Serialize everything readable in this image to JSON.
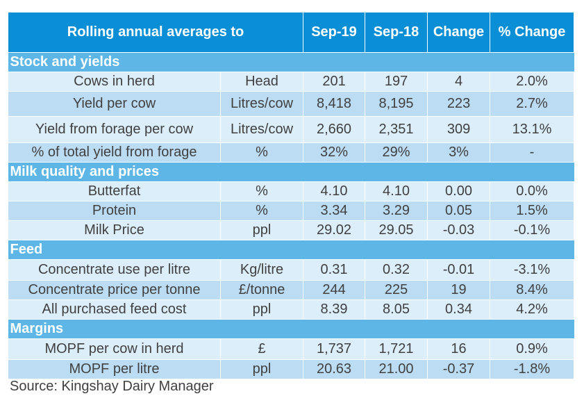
{
  "header": {
    "title": "Rolling annual averages to",
    "col_current": "Sep-19",
    "col_previous": "Sep-18",
    "col_change": "Change",
    "col_pct_change": "% Change"
  },
  "sections": [
    {
      "title": "Stock and yields",
      "rows": [
        {
          "label": "Cows in herd",
          "unit": "Head",
          "current": "201",
          "previous": "197",
          "change": "4",
          "pct": "2.0%"
        },
        {
          "label": "Yield per cow",
          "unit": "Litres/cow",
          "current": "8,418",
          "previous": "8,195",
          "change": "223",
          "pct": "2.7%"
        },
        {
          "label": "Yield from forage per cow",
          "unit": "Litres/cow",
          "current": "2,660",
          "previous": "2,351",
          "change": "309",
          "pct": "13.1%"
        },
        {
          "label": "% of total yield from forage",
          "unit": "%",
          "current": "32%",
          "previous": "29%",
          "change": "3%",
          "pct": "-"
        }
      ]
    },
    {
      "title": "Milk quality and prices",
      "rows": [
        {
          "label": "Butterfat",
          "unit": "%",
          "current": "4.10",
          "previous": "4.10",
          "change": "0.00",
          "pct": "0.0%"
        },
        {
          "label": "Protein",
          "unit": "%",
          "current": "3.34",
          "previous": "3.29",
          "change": "0.05",
          "pct": "1.5%"
        },
        {
          "label": "Milk Price",
          "unit": "ppl",
          "current": "29.02",
          "previous": "29.05",
          "change": "-0.03",
          "pct": "-0.1%"
        }
      ]
    },
    {
      "title": "Feed",
      "rows": [
        {
          "label": "Concentrate use per litre",
          "unit": "Kg/litre",
          "current": "0.31",
          "previous": "0.32",
          "change": "-0.01",
          "pct": "-3.1%"
        },
        {
          "label": "Concentrate price per tonne",
          "unit": "£/tonne",
          "current": "244",
          "previous": "225",
          "change": "19",
          "pct": "8.4%"
        },
        {
          "label": "All purchased feed cost",
          "unit": "ppl",
          "current": "8.39",
          "previous": "8.05",
          "change": "0.34",
          "pct": "4.2%"
        }
      ]
    },
    {
      "title": "Margins",
      "rows": [
        {
          "label": "MOPF per cow in herd",
          "unit": "£",
          "current": "1,737",
          "previous": "1,721",
          "change": "16",
          "pct": "0.9%"
        },
        {
          "label": "MOPF per litre",
          "unit": "ppl",
          "current": "20.63",
          "previous": "21.00",
          "change": "-0.37",
          "pct": "-1.8%"
        }
      ]
    }
  ],
  "source": "Source: Kingshay Dairy Manager",
  "colors": {
    "header_bg": "#0a8fd6",
    "section_bg": "#5db6e6",
    "row_light": "#ddeefb",
    "row_dark": "#bcdcf4",
    "text": "#404040"
  }
}
